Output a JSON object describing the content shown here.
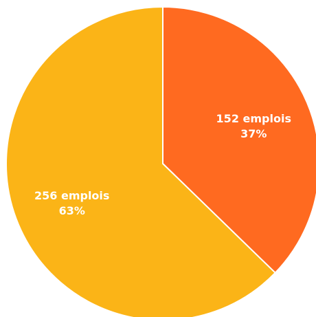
{
  "chart_data": {
    "type": "pie",
    "start_angle_deg": 0,
    "direction": "clockwise",
    "slices": [
      {
        "label": "152 emplois",
        "percent_label": "37%",
        "value": 152,
        "color": "#ff6a20"
      },
      {
        "label": "256 emplois",
        "percent_label": "63%",
        "value": 256,
        "color": "#fbb417"
      }
    ],
    "separator_color": "#ffffff"
  }
}
